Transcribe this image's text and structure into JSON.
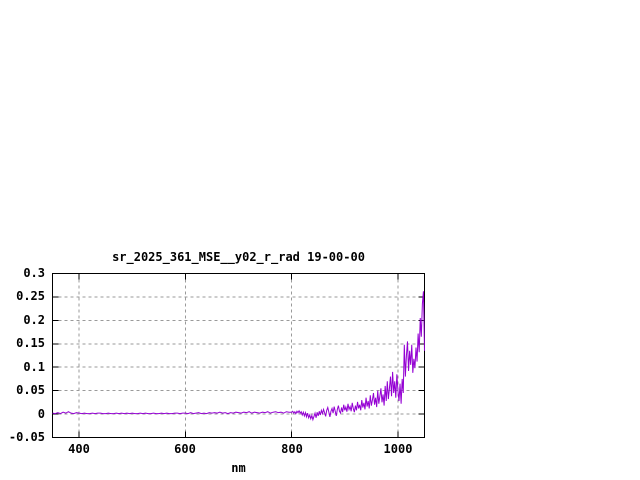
{
  "chart_data": {
    "type": "line",
    "title": "sr_2025_361_MSE__y02_r_rad 19-00-00",
    "xlabel": "nm",
    "ylabel": "",
    "xlim": [
      350,
      1050
    ],
    "ylim": [
      -0.05,
      0.3
    ],
    "xticks": [
      400,
      600,
      800,
      1000
    ],
    "ytick_values": [
      -0.05,
      0,
      0.05,
      0.1,
      0.15,
      0.2,
      0.25,
      0.3
    ],
    "ytick_labels": [
      "-0.05",
      "0",
      "0.05",
      "0.1",
      "0.15",
      "0.2",
      "0.25",
      "0.3"
    ],
    "grid": true,
    "legend": false,
    "line_color": "#9400d3",
    "series": [
      {
        "points": [
          [
            350,
            0.002
          ],
          [
            355,
            0.001
          ],
          [
            360,
            0.003
          ],
          [
            365,
            0.001
          ],
          [
            370,
            0.004
          ],
          [
            375,
            0.002
          ],
          [
            380,
            0.005
          ],
          [
            385,
            0.002
          ],
          [
            390,
            0.001
          ],
          [
            395,
            0.003
          ],
          [
            400,
            0.002
          ],
          [
            405,
            0.001
          ],
          [
            410,
            0.002
          ],
          [
            415,
            0.001
          ],
          [
            420,
            0.001
          ],
          [
            425,
            0.002
          ],
          [
            430,
            0.001
          ],
          [
            435,
            0.002
          ],
          [
            440,
            0.002
          ],
          [
            445,
            0.001
          ],
          [
            450,
            0.001
          ],
          [
            455,
            0.002
          ],
          [
            460,
            0.001
          ],
          [
            465,
            0.001
          ],
          [
            470,
            0.002
          ],
          [
            475,
            0.001
          ],
          [
            480,
            0.002
          ],
          [
            485,
            0.001
          ],
          [
            490,
            0.002
          ],
          [
            495,
            0.001
          ],
          [
            500,
            0.002
          ],
          [
            505,
            0.001
          ],
          [
            510,
            0.001
          ],
          [
            515,
            0.002
          ],
          [
            520,
            0.001
          ],
          [
            525,
            0.002
          ],
          [
            530,
            0.001
          ],
          [
            535,
            0.001
          ],
          [
            540,
            0.002
          ],
          [
            545,
            0.001
          ],
          [
            550,
            0.001
          ],
          [
            555,
            0.002
          ],
          [
            560,
            0.001
          ],
          [
            565,
            0.002
          ],
          [
            570,
            0.001
          ],
          [
            575,
            0.001
          ],
          [
            580,
            0.002
          ],
          [
            585,
            0.002
          ],
          [
            590,
            0.001
          ],
          [
            595,
            0.002
          ],
          [
            600,
            0.002
          ],
          [
            605,
            0.001
          ],
          [
            610,
            0.003
          ],
          [
            615,
            0.001
          ],
          [
            620,
            0.002
          ],
          [
            625,
            0.003
          ],
          [
            630,
            0.001
          ],
          [
            635,
            0.002
          ],
          [
            640,
            0.001
          ],
          [
            645,
            0.003
          ],
          [
            650,
            0.002
          ],
          [
            655,
            0.003
          ],
          [
            660,
            0.002
          ],
          [
            665,
            0.004
          ],
          [
            670,
            0.002
          ],
          [
            675,
            0.003
          ],
          [
            680,
            0.001
          ],
          [
            685,
            0.003
          ],
          [
            690,
            0.002
          ],
          [
            695,
            0.004
          ],
          [
            700,
            0.003
          ],
          [
            705,
            0.002
          ],
          [
            710,
            0.004
          ],
          [
            715,
            0.003
          ],
          [
            720,
            0.005
          ],
          [
            725,
            0.002
          ],
          [
            730,
            0.004
          ],
          [
            735,
            0.003
          ],
          [
            740,
            0.002
          ],
          [
            745,
            0.004
          ],
          [
            750,
            0.003
          ],
          [
            755,
            0.005
          ],
          [
            760,
            0.002
          ],
          [
            765,
            0.004
          ],
          [
            770,
            0.005
          ],
          [
            775,
            0.003
          ],
          [
            780,
            0.004
          ],
          [
            785,
            0.002
          ],
          [
            790,
            0.005
          ],
          [
            795,
            0.004
          ],
          [
            800,
            0.004
          ],
          [
            802,
            0.006
          ],
          [
            804,
            0.002
          ],
          [
            806,
            0.005
          ],
          [
            808,
            0.001
          ],
          [
            810,
            0.006
          ],
          [
            812,
            0.003
          ],
          [
            814,
            0.007
          ],
          [
            816,
            0.002
          ],
          [
            818,
            0.005
          ],
          [
            820,
            -0.002
          ],
          [
            822,
            0.004
          ],
          [
            824,
            -0.004
          ],
          [
            826,
            0.003
          ],
          [
            828,
            -0.006
          ],
          [
            830,
            0.002
          ],
          [
            832,
            -0.008
          ],
          [
            834,
            -0.002
          ],
          [
            836,
            -0.01
          ],
          [
            838,
            -0.003
          ],
          [
            840,
            -0.012
          ],
          [
            842,
            -0.005
          ],
          [
            844,
            0.002
          ],
          [
            846,
            -0.008
          ],
          [
            848,
            0.004
          ],
          [
            850,
            -0.004
          ],
          [
            852,
            0.006
          ],
          [
            854,
            -0.002
          ],
          [
            856,
            0.008
          ],
          [
            858,
            0.001
          ],
          [
            860,
            0.01
          ],
          [
            862,
            0.003
          ],
          [
            864,
            -0.005
          ],
          [
            866,
            0.008
          ],
          [
            868,
            0.014
          ],
          [
            870,
            0.004
          ],
          [
            872,
            -0.006
          ],
          [
            874,
            0.006
          ],
          [
            876,
            0.012
          ],
          [
            878,
            0.002
          ],
          [
            880,
            0.016
          ],
          [
            882,
            0.006
          ],
          [
            884,
            -0.004
          ],
          [
            886,
            0.01
          ],
          [
            888,
            0.018
          ],
          [
            890,
            0.006
          ],
          [
            892,
            0.002
          ],
          [
            894,
            0.014
          ],
          [
            896,
            0.004
          ],
          [
            898,
            0.02
          ],
          [
            900,
            0.008
          ],
          [
            902,
            0.015
          ],
          [
            904,
            0.005
          ],
          [
            906,
            0.022
          ],
          [
            908,
            0.01
          ],
          [
            910,
            0.016
          ],
          [
            912,
            0.006
          ],
          [
            914,
            0.024
          ],
          [
            916,
            0.012
          ],
          [
            918,
            0.004
          ],
          [
            920,
            0.018
          ],
          [
            922,
            0.008
          ],
          [
            924,
            0.026
          ],
          [
            926,
            0.012
          ],
          [
            928,
            0.02
          ],
          [
            930,
            0.008
          ],
          [
            932,
            0.03
          ],
          [
            934,
            0.014
          ],
          [
            936,
            0.024
          ],
          [
            938,
            0.01
          ],
          [
            940,
            0.035
          ],
          [
            942,
            0.016
          ],
          [
            944,
            0.028
          ],
          [
            946,
            0.012
          ],
          [
            948,
            0.04
          ],
          [
            950,
            0.018
          ],
          [
            952,
            0.03
          ],
          [
            954,
            0.045
          ],
          [
            956,
            0.02
          ],
          [
            958,
            0.035
          ],
          [
            960,
            0.015
          ],
          [
            962,
            0.05
          ],
          [
            964,
            0.022
          ],
          [
            966,
            0.038
          ],
          [
            968,
            0.055
          ],
          [
            970,
            0.025
          ],
          [
            972,
            0.042
          ],
          [
            974,
            0.018
          ],
          [
            976,
            0.06
          ],
          [
            978,
            0.028
          ],
          [
            980,
            0.07
          ],
          [
            982,
            0.032
          ],
          [
            984,
            0.055
          ],
          [
            986,
            0.08
          ],
          [
            988,
            0.038
          ],
          [
            990,
            0.09
          ],
          [
            992,
            0.045
          ],
          [
            994,
            0.07
          ],
          [
            996,
            0.035
          ],
          [
            998,
            0.085
          ],
          [
            1000,
            0.05
          ],
          [
            1002,
            0.028
          ],
          [
            1004,
            0.065
          ],
          [
            1006,
            0.022
          ],
          [
            1008,
            0.075
          ],
          [
            1010,
            0.045
          ],
          [
            1012,
            0.148
          ],
          [
            1014,
            0.08
          ],
          [
            1016,
            0.125
          ],
          [
            1018,
            0.155
          ],
          [
            1020,
            0.092
          ],
          [
            1022,
            0.135
          ],
          [
            1024,
            0.105
          ],
          [
            1026,
            0.148
          ],
          [
            1028,
            0.088
          ],
          [
            1030,
            0.118
          ],
          [
            1032,
            0.098
          ],
          [
            1034,
            0.142
          ],
          [
            1036,
            0.112
          ],
          [
            1038,
            0.172
          ],
          [
            1040,
            0.132
          ],
          [
            1042,
            0.205
          ],
          [
            1044,
            0.165
          ],
          [
            1046,
            0.235
          ],
          [
            1048,
            0.262
          ],
          [
            1050,
            0.135
          ]
        ]
      }
    ]
  }
}
